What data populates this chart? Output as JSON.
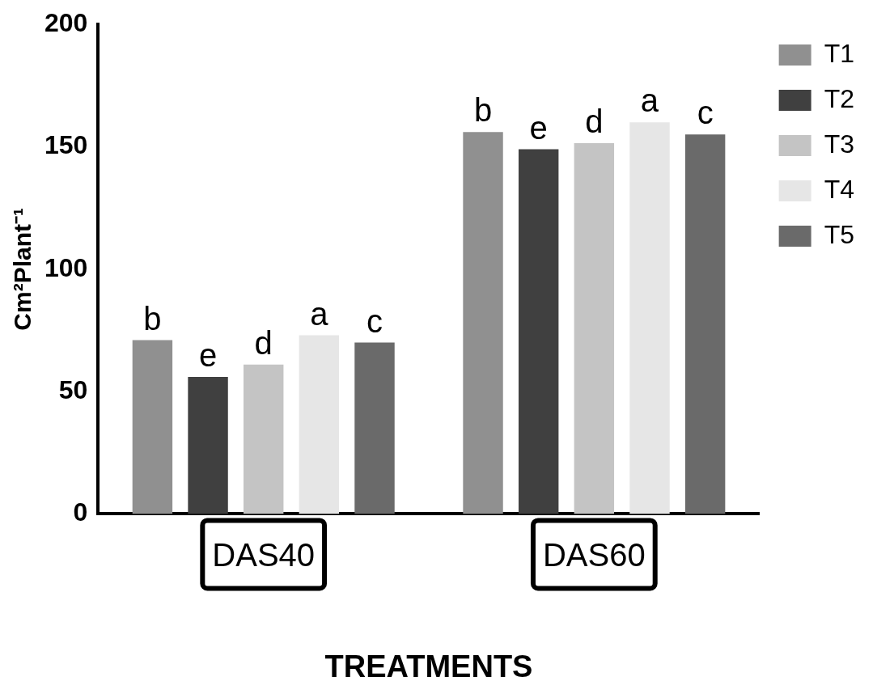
{
  "chart_data": {
    "type": "bar",
    "xlabel": "TREATMENTS",
    "ylabel": "Cm²Plant⁻¹",
    "categories": [
      "DAS40",
      "DAS60"
    ],
    "series": [
      {
        "name": "T1",
        "color": "#909090",
        "values": [
          71,
          156
        ],
        "value_labels": [
          "b",
          "b"
        ]
      },
      {
        "name": "T2",
        "color": "#404040",
        "values": [
          56,
          149
        ],
        "value_labels": [
          "e",
          "e"
        ]
      },
      {
        "name": "T3",
        "color": "#c4c4c4",
        "values": [
          61,
          151.5
        ],
        "value_labels": [
          "d",
          "d"
        ]
      },
      {
        "name": "T4",
        "color": "#e6e6e6",
        "values": [
          73,
          160
        ],
        "value_labels": [
          "a",
          "a"
        ]
      },
      {
        "name": "T5",
        "color": "#6a6a6a",
        "values": [
          70,
          155
        ],
        "value_labels": [
          "c",
          "c"
        ]
      }
    ],
    "ylim": [
      0,
      200
    ],
    "yticks": [
      0,
      50,
      100,
      150,
      200
    ],
    "grid": false,
    "legend": "top right"
  }
}
